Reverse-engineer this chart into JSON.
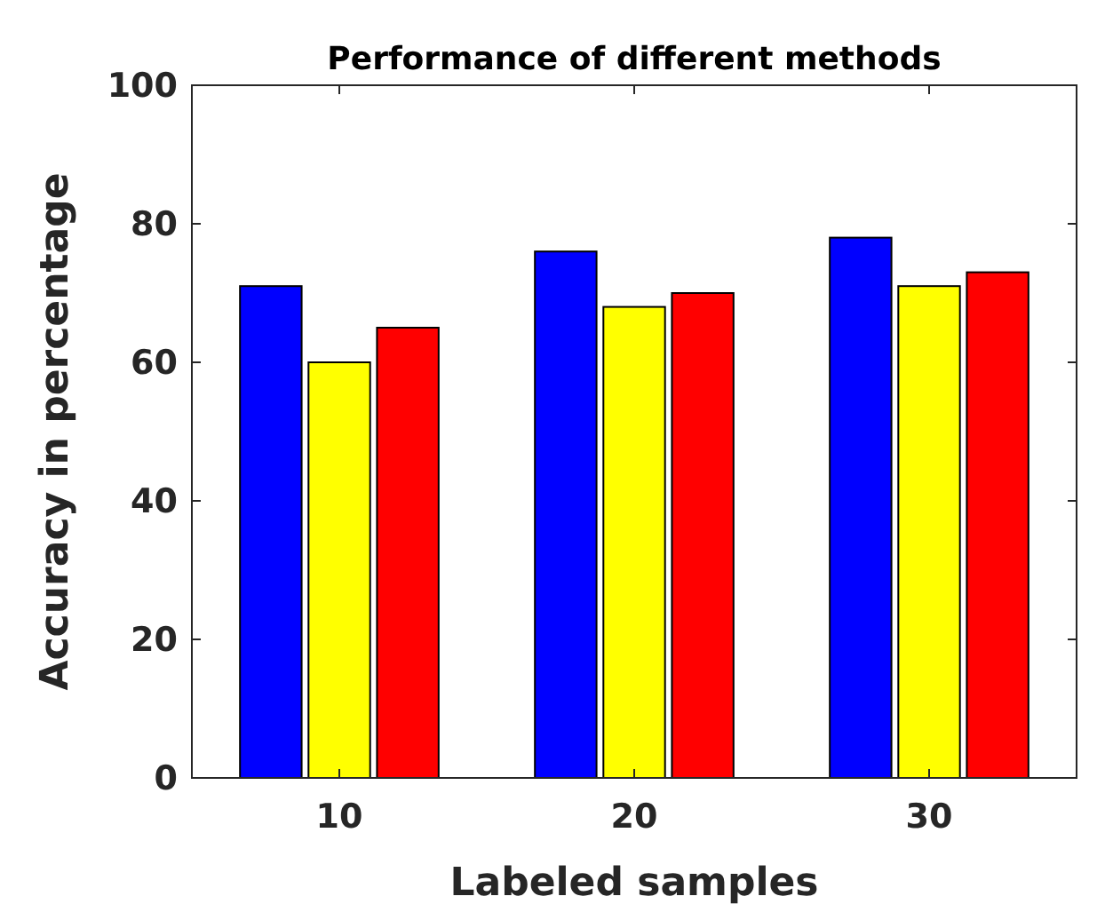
{
  "chart_data": {
    "type": "bar",
    "title": "Performance of different methods",
    "xlabel": "Labeled samples",
    "ylabel": "Accuracy in percentage",
    "categories": [
      "10",
      "20",
      "30"
    ],
    "series": [
      {
        "color": "#0000ff",
        "values": [
          71,
          76,
          78
        ]
      },
      {
        "color": "#ffff00",
        "values": [
          60,
          68,
          71
        ]
      },
      {
        "color": "#ff0000",
        "values": [
          65,
          70,
          73
        ]
      }
    ],
    "ylim": [
      0,
      100
    ],
    "yticks": [
      0,
      20,
      40,
      60,
      80,
      100
    ],
    "grid": false
  }
}
